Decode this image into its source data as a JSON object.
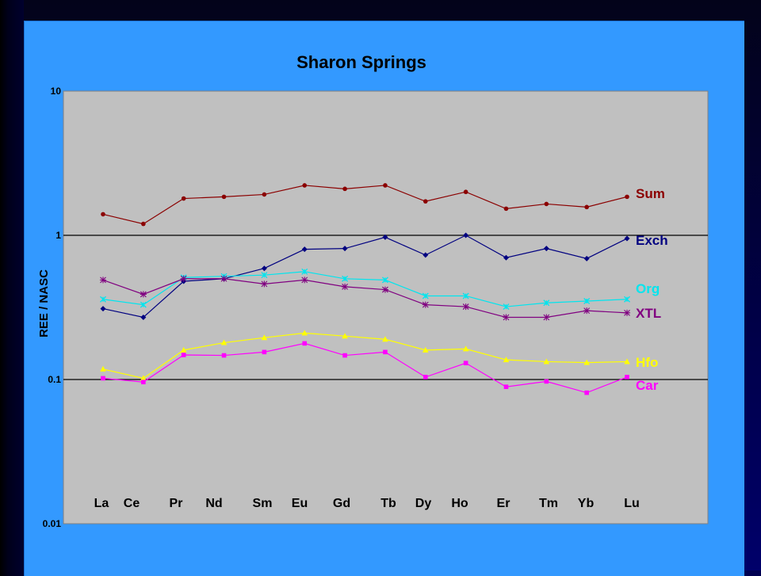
{
  "chart_data": {
    "type": "line",
    "title": "Sharon Springs",
    "ylabel": "REE / NASC",
    "xlabel": "",
    "y_scale": "log",
    "ylim": [
      0.01,
      10
    ],
    "y_ticks": [
      "10",
      "1",
      "0.1",
      "0.01"
    ],
    "y_tick_values": [
      10,
      1,
      0.1,
      0.01
    ],
    "categories": [
      "La",
      "Ce",
      "Pr",
      "Nd",
      "Sm",
      "Eu",
      "Gd",
      "Tb",
      "Dy",
      "Ho",
      "Er",
      "Tm",
      "Yb",
      "Lu"
    ],
    "grid": "horizontal major lines at decades",
    "legend": "series labels at right end of lines",
    "series": [
      {
        "name": "Sum",
        "color": "#8b0000",
        "marker": "circle",
        "values": [
          1.4,
          1.2,
          1.8,
          1.85,
          1.92,
          2.22,
          2.1,
          2.22,
          1.72,
          2.0,
          1.53,
          1.65,
          1.57,
          1.85
        ]
      },
      {
        "name": "Exch",
        "color": "#000080",
        "marker": "diamond",
        "values": [
          0.31,
          0.27,
          0.48,
          0.5,
          0.59,
          0.8,
          0.81,
          0.97,
          0.73,
          1.0,
          0.7,
          0.81,
          0.69,
          0.95
        ]
      },
      {
        "name": "Org",
        "color": "#00e5ee",
        "marker": "star",
        "values": [
          0.36,
          0.33,
          0.51,
          0.52,
          0.53,
          0.56,
          0.5,
          0.49,
          0.38,
          0.38,
          0.32,
          0.34,
          0.35,
          0.36
        ]
      },
      {
        "name": "XTL",
        "color": "#800080",
        "marker": "asterisk",
        "values": [
          0.49,
          0.39,
          0.5,
          0.5,
          0.46,
          0.49,
          0.44,
          0.42,
          0.33,
          0.32,
          0.27,
          0.27,
          0.3,
          0.29
        ]
      },
      {
        "name": "Hfo",
        "color": "#ffff00",
        "marker": "triangle",
        "values": [
          0.118,
          0.102,
          0.16,
          0.18,
          0.195,
          0.21,
          0.2,
          0.19,
          0.16,
          0.163,
          0.137,
          0.133,
          0.131,
          0.133
        ]
      },
      {
        "name": "Car",
        "color": "#ff00ff",
        "marker": "square",
        "values": [
          0.102,
          0.096,
          0.148,
          0.147,
          0.155,
          0.178,
          0.147,
          0.155,
          0.104,
          0.13,
          0.089,
          0.097,
          0.081,
          0.104
        ]
      }
    ]
  }
}
